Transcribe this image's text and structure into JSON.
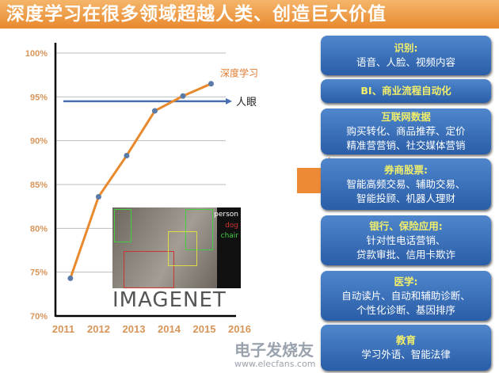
{
  "title": "深度学习在很多领域超越人类、创造巨大价值",
  "chart_data": {
    "type": "line",
    "title": "",
    "xlabel": "",
    "ylabel": "",
    "x_ticks": [
      "2011",
      "2012",
      "2013",
      "2014",
      "2015",
      "2016"
    ],
    "y_ticks": [
      "70%",
      "75%",
      "80%",
      "85%",
      "90%",
      "95%",
      "100%"
    ],
    "ylim": [
      70,
      100
    ],
    "xlim": [
      2011,
      2016
    ],
    "grid": true,
    "series": [
      {
        "name": "深度学习",
        "color": "#e8892e",
        "x": [
          2011.2,
          2012,
          2012.8,
          2013.6,
          2014.4,
          2015.2
        ],
        "values": [
          74.3,
          83.6,
          88.3,
          93.4,
          95.1,
          96.5
        ]
      },
      {
        "name": "人眼",
        "color": "#4a6fb0",
        "values": [
          94.5
        ]
      }
    ]
  },
  "image": {
    "labels": [
      "person",
      "dog",
      "chair"
    ],
    "logo": "IMAGENET"
  },
  "boxes": [
    {
      "head": "识别:",
      "lines": [
        "语音、人脸、视频内容"
      ]
    },
    {
      "head": "BI、商业流程自动化",
      "lines": []
    },
    {
      "head": "互联网数据",
      "lines": [
        "购买转化、商品推荐、定价",
        "精准营营销、社交媒体营销"
      ]
    },
    {
      "head": "券商股票:",
      "lines": [
        "智能高频交易、辅助交易、",
        "智能投顾、机器人理财"
      ]
    },
    {
      "head": "银行、保险应用:",
      "lines": [
        "针对性电话营销、",
        "贷款审批、信用卡欺诈"
      ]
    },
    {
      "head": "医学:",
      "lines": [
        "自动读片、自动和辅助诊断、",
        "个性化诊断、基因排序"
      ]
    },
    {
      "head": "教育",
      "lines": [
        "学习外语、智能法律"
      ]
    }
  ],
  "watermark": {
    "name": "电子发烧友",
    "url": "www.elecfans.com"
  },
  "colors": {
    "accent": "#e8892e",
    "box": "#3a6fb8",
    "box_head": "#f2ef6a"
  }
}
